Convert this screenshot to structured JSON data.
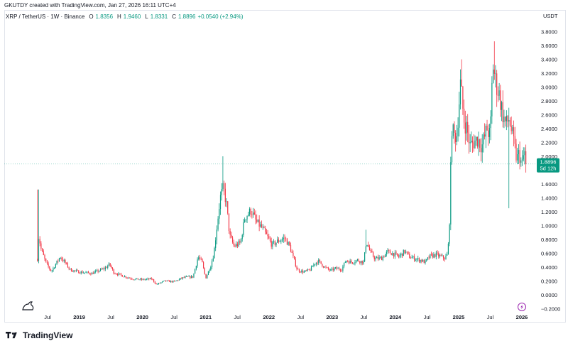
{
  "caption": "GKUTDY created with TradingView.com, Jan 27, 2026 16:11 UTC+4",
  "legend": {
    "symbol": "XRP / TetherUS · 1W · Binance",
    "open_label": "O",
    "open": "1.8356",
    "high_label": "H",
    "high": "1.9460",
    "low_label": "L",
    "low": "1.8331",
    "close_label": "C",
    "close": "1.8896",
    "change": "+0.0540 (+2.94%)"
  },
  "currency_label": "USDT",
  "price_tag": {
    "price": "1.8896",
    "countdown": "5d 12h"
  },
  "brand": "TradingView",
  "colors": {
    "up": "#089981",
    "down": "#f23645",
    "tag": "#089981",
    "grid": "#f0f3fa"
  },
  "chart_data": {
    "type": "candlestick",
    "symbol": "XRP / TetherUS",
    "interval": "1W",
    "exchange": "Binance",
    "ylim": [
      -0.2,
      3.8
    ],
    "y_ticks": [
      "3.8000",
      "3.6000",
      "3.4000",
      "3.2000",
      "3.0000",
      "2.8000",
      "2.6000",
      "2.4000",
      "2.2000",
      "2.0000",
      "1.8000",
      "1.6000",
      "1.4000",
      "1.2000",
      "1.0000",
      "0.8000",
      "0.6000",
      "0.4000",
      "0.2000",
      "0.0000",
      "−0.2000"
    ],
    "y_tick_values": [
      3.8,
      3.6,
      3.4,
      3.2,
      3.0,
      2.8,
      2.6,
      2.4,
      2.2,
      2.0,
      1.8,
      1.6,
      1.4,
      1.2,
      1.0,
      0.8,
      0.6,
      0.4,
      0.2,
      0.0,
      -0.2
    ],
    "x_ticks": [
      "Jul",
      "2019",
      "Jul",
      "2020",
      "Jul",
      "2021",
      "Jul",
      "2022",
      "Jul",
      "2023",
      "Jul",
      "2024",
      "Jul",
      "2025",
      "Jul",
      "2026"
    ],
    "x_tick_bold": [
      false,
      true,
      false,
      true,
      false,
      true,
      false,
      true,
      false,
      true,
      false,
      true,
      false,
      true,
      false,
      true
    ],
    "x_tick_dates": [
      2018.5,
      2019.0,
      2019.5,
      2020.0,
      2020.5,
      2021.0,
      2021.5,
      2022.0,
      2022.5,
      2023.0,
      2023.5,
      2024.0,
      2024.5,
      2025.0,
      2025.5,
      2026.0
    ],
    "x_range": [
      2018.33,
      2026.17
    ],
    "last_close": 1.8896,
    "keypoints": [
      [
        2018.34,
        0.52
      ],
      [
        2018.36,
        0.85
      ],
      [
        2018.4,
        0.65
      ],
      [
        2018.48,
        0.45
      ],
      [
        2018.56,
        0.34
      ],
      [
        2018.7,
        0.55
      ],
      [
        2018.78,
        0.46
      ],
      [
        2018.86,
        0.36
      ],
      [
        2019.0,
        0.33
      ],
      [
        2019.2,
        0.31
      ],
      [
        2019.4,
        0.38
      ],
      [
        2019.48,
        0.44
      ],
      [
        2019.55,
        0.32
      ],
      [
        2019.7,
        0.27
      ],
      [
        2019.85,
        0.23
      ],
      [
        2020.0,
        0.22
      ],
      [
        2020.15,
        0.23
      ],
      [
        2020.22,
        0.15
      ],
      [
        2020.35,
        0.2
      ],
      [
        2020.5,
        0.19
      ],
      [
        2020.65,
        0.25
      ],
      [
        2020.8,
        0.26
      ],
      [
        2020.88,
        0.55
      ],
      [
        2020.94,
        0.48
      ],
      [
        2021.0,
        0.24
      ],
      [
        2021.08,
        0.42
      ],
      [
        2021.13,
        0.6
      ],
      [
        2021.23,
        1.4
      ],
      [
        2021.28,
        1.55
      ],
      [
        2021.33,
        1.3
      ],
      [
        2021.38,
        0.85
      ],
      [
        2021.45,
        0.7
      ],
      [
        2021.55,
        0.75
      ],
      [
        2021.62,
        1.12
      ],
      [
        2021.72,
        1.22
      ],
      [
        2021.8,
        1.05
      ],
      [
        2021.88,
        0.98
      ],
      [
        2021.98,
        0.83
      ],
      [
        2022.05,
        0.72
      ],
      [
        2022.15,
        0.78
      ],
      [
        2022.25,
        0.82
      ],
      [
        2022.33,
        0.7
      ],
      [
        2022.38,
        0.55
      ],
      [
        2022.45,
        0.36
      ],
      [
        2022.55,
        0.33
      ],
      [
        2022.65,
        0.36
      ],
      [
        2022.72,
        0.45
      ],
      [
        2022.78,
        0.49
      ],
      [
        2022.88,
        0.4
      ],
      [
        2022.97,
        0.35
      ],
      [
        2023.05,
        0.38
      ],
      [
        2023.15,
        0.37
      ],
      [
        2023.22,
        0.5
      ],
      [
        2023.3,
        0.47
      ],
      [
        2023.4,
        0.5
      ],
      [
        2023.5,
        0.47
      ],
      [
        2023.54,
        0.78
      ],
      [
        2023.6,
        0.62
      ],
      [
        2023.68,
        0.52
      ],
      [
        2023.78,
        0.53
      ],
      [
        2023.88,
        0.62
      ],
      [
        2023.95,
        0.6
      ],
      [
        2024.05,
        0.55
      ],
      [
        2024.15,
        0.63
      ],
      [
        2024.22,
        0.55
      ],
      [
        2024.32,
        0.52
      ],
      [
        2024.4,
        0.5
      ],
      [
        2024.47,
        0.47
      ],
      [
        2024.55,
        0.56
      ],
      [
        2024.65,
        0.58
      ],
      [
        2024.72,
        0.55
      ],
      [
        2024.78,
        0.53
      ],
      [
        2024.83,
        0.59
      ],
      [
        2024.86,
        1.15
      ],
      [
        2024.89,
        2.45
      ],
      [
        2024.92,
        2.3
      ],
      [
        2024.97,
        2.3
      ],
      [
        2025.03,
        3.05
      ],
      [
        2025.08,
        2.55
      ],
      [
        2025.13,
        2.4
      ],
      [
        2025.18,
        2.15
      ],
      [
        2025.23,
        2.2
      ],
      [
        2025.3,
        2.25
      ],
      [
        2025.37,
        2.15
      ],
      [
        2025.45,
        2.4
      ],
      [
        2025.5,
        2.28
      ],
      [
        2025.54,
        3.35
      ],
      [
        2025.58,
        3.1
      ],
      [
        2025.64,
        2.9
      ],
      [
        2025.7,
        2.6
      ],
      [
        2025.75,
        2.45
      ],
      [
        2025.8,
        2.55
      ],
      [
        2025.86,
        2.25
      ],
      [
        2025.92,
        1.95
      ],
      [
        2025.96,
        2.05
      ],
      [
        2026.0,
        1.85
      ],
      [
        2026.04,
        2.08
      ],
      [
        2026.07,
        1.89
      ]
    ],
    "spikes": [
      {
        "x": 2018.35,
        "high": 1.52
      },
      {
        "x": 2021.27,
        "high": 2.0
      },
      {
        "x": 2025.05,
        "high": 3.4
      },
      {
        "x": 2025.57,
        "high": 3.66
      },
      {
        "x": 2025.8,
        "low": 1.25
      },
      {
        "x": 2023.54,
        "high": 0.94
      }
    ]
  }
}
